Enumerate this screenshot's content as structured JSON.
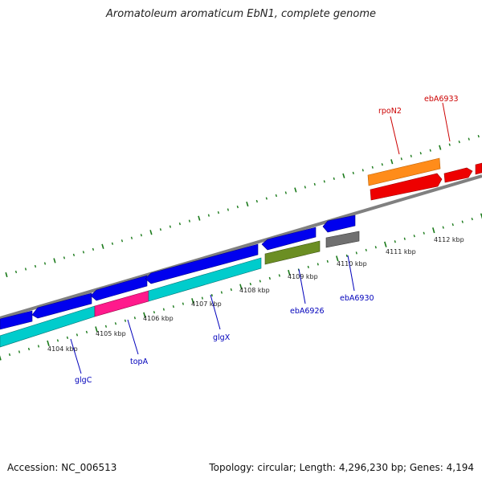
{
  "title": "Aromatoleum aromaticum EbN1, complete genome",
  "footer": {
    "accession": "Accession: NC_006513",
    "summary": "Topology: circular; Length: 4,296,230 bp; Genes: 4,194"
  },
  "colors": {
    "backbone": "#808080",
    "tick": "#1a7a1a",
    "label_forward": "#cc0000",
    "label_reverse": "#0000bb"
  },
  "scale": {
    "unit": "kbp",
    "ticks": [
      "4104 kbp",
      "4105 kbp",
      "4106 kbp",
      "4107 kbp",
      "4108 kbp",
      "4109 kbp",
      "4110 kbp",
      "4111 kbp",
      "4112 kbp"
    ]
  },
  "genes": [
    {
      "name": "rpoN2",
      "strand": "forward"
    },
    {
      "name": "ebA6933",
      "strand": "forward"
    },
    {
      "name": "glgC",
      "strand": "reverse"
    },
    {
      "name": "topA",
      "strand": "reverse"
    },
    {
      "name": "glgX",
      "strand": "reverse"
    },
    {
      "name": "ebA6926",
      "strand": "reverse"
    },
    {
      "name": "ebA6930",
      "strand": "reverse"
    }
  ]
}
